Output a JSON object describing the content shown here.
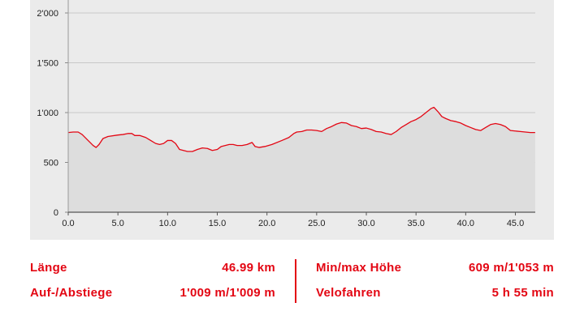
{
  "chart_data": {
    "type": "area",
    "title": "",
    "xlabel": "",
    "ylabel": "",
    "xlim": [
      0,
      47
    ],
    "ylim": [
      0,
      2000
    ],
    "x_ticks": [
      0,
      5,
      10,
      15,
      20,
      25,
      30,
      35,
      40,
      45
    ],
    "x_tick_labels": [
      "0.0",
      "5.0",
      "10.0",
      "15.0",
      "20.0",
      "25.0",
      "30.0",
      "35.0",
      "40.0",
      "45.0"
    ],
    "y_ticks": [
      0,
      500,
      1000,
      1500,
      2000
    ],
    "y_tick_labels": [
      "0",
      "500",
      "1'000",
      "1'500",
      "2'000"
    ],
    "grid": true,
    "line_color": "#e30613",
    "fill_color": "#dddddd",
    "series": [
      {
        "x": [
          0,
          0.5,
          1.0,
          1.4,
          2.0,
          2.5,
          2.8,
          3.1,
          3.5,
          4.0,
          5.0,
          5.5,
          6.0,
          6.4,
          6.7,
          7.2,
          7.8,
          8.3,
          8.8,
          9.2,
          9.6,
          10.0,
          10.4,
          10.8,
          11.2,
          11.6,
          12.0,
          12.5,
          13.0,
          13.5,
          14.0,
          14.5,
          15.0,
          15.4,
          15.8,
          16.2,
          16.6,
          17.0,
          17.5,
          18.0,
          18.5,
          18.8,
          19.2,
          19.8,
          20.5,
          21.5,
          22.2,
          22.7,
          23.0,
          23.5,
          24.0,
          24.5,
          25.0,
          25.5,
          26.0,
          26.5,
          27.0,
          27.5,
          28.0,
          28.5,
          29.0,
          29.5,
          30.0,
          30.5,
          31.0,
          31.5,
          32.0,
          32.5,
          33.0,
          33.5,
          34.0,
          34.5,
          35.0,
          35.5,
          36.0,
          36.5,
          36.8,
          37.2,
          37.6,
          38.0,
          38.5,
          39.0,
          39.5,
          40.0,
          40.5,
          41.0,
          41.5,
          42.0,
          42.5,
          43.0,
          43.5,
          44.0,
          44.5,
          45.0,
          45.5,
          46.0,
          46.5,
          46.99
        ],
        "y": [
          800,
          805,
          805,
          780,
          720,
          670,
          650,
          680,
          740,
          760,
          775,
          780,
          790,
          790,
          770,
          770,
          750,
          720,
          690,
          680,
          690,
          720,
          720,
          690,
          630,
          620,
          610,
          610,
          630,
          645,
          640,
          620,
          630,
          660,
          670,
          680,
          680,
          670,
          670,
          680,
          700,
          660,
          650,
          660,
          680,
          720,
          750,
          790,
          805,
          810,
          825,
          825,
          820,
          810,
          840,
          860,
          885,
          900,
          895,
          870,
          860,
          840,
          845,
          830,
          810,
          805,
          790,
          780,
          810,
          850,
          880,
          910,
          930,
          960,
          1000,
          1040,
          1053,
          1010,
          960,
          940,
          920,
          910,
          895,
          870,
          850,
          830,
          820,
          850,
          880,
          890,
          880,
          860,
          820,
          815,
          810,
          805,
          800,
          800
        ]
      }
    ]
  },
  "stats": {
    "length_label": "Länge",
    "length_value": "46.99 km",
    "minmax_label": "Min/max Höhe",
    "minmax_value": "609 m/1'053 m",
    "ascent_label": "Auf-/Abstiege",
    "ascent_value": "1'009 m/1'009 m",
    "ride_label": "Velofahren",
    "ride_value": "5 h 55 min"
  }
}
